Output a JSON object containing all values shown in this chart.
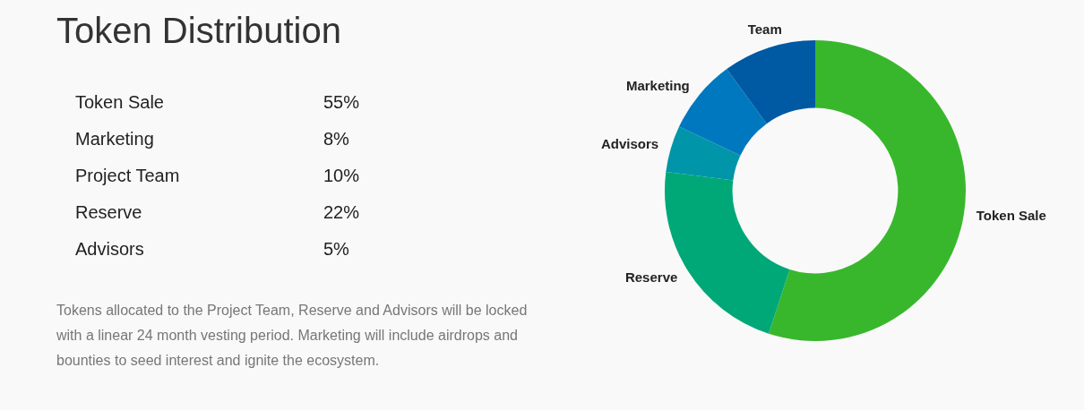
{
  "chart_data": [
    {
      "type": "other",
      "title": "Token Distribution",
      "categories": [
        "Token Sale",
        "Marketing",
        "Project Team",
        "Reserve",
        "Advisors"
      ],
      "value_labels": [
        "55%",
        "8%",
        "10%",
        "22%",
        "5%"
      ],
      "annotations": [
        "Tokens allocated to the Project Team, Reserve and Advisors will be locked with a linear 24 month vesting period. Marketing will include airdrops and bounties to seed interest and ignite the ecosystem."
      ]
    },
    {
      "type": "donut",
      "categories": [
        "Token Sale",
        "Reserve",
        "Advisors",
        "Marketing",
        "Team"
      ],
      "values": [
        55,
        22,
        5,
        8,
        10
      ],
      "colors": [
        "#38b72c",
        "#00a878",
        "#0095a8",
        "#0078bf",
        "#0059a3"
      ],
      "legend": false
    }
  ]
}
